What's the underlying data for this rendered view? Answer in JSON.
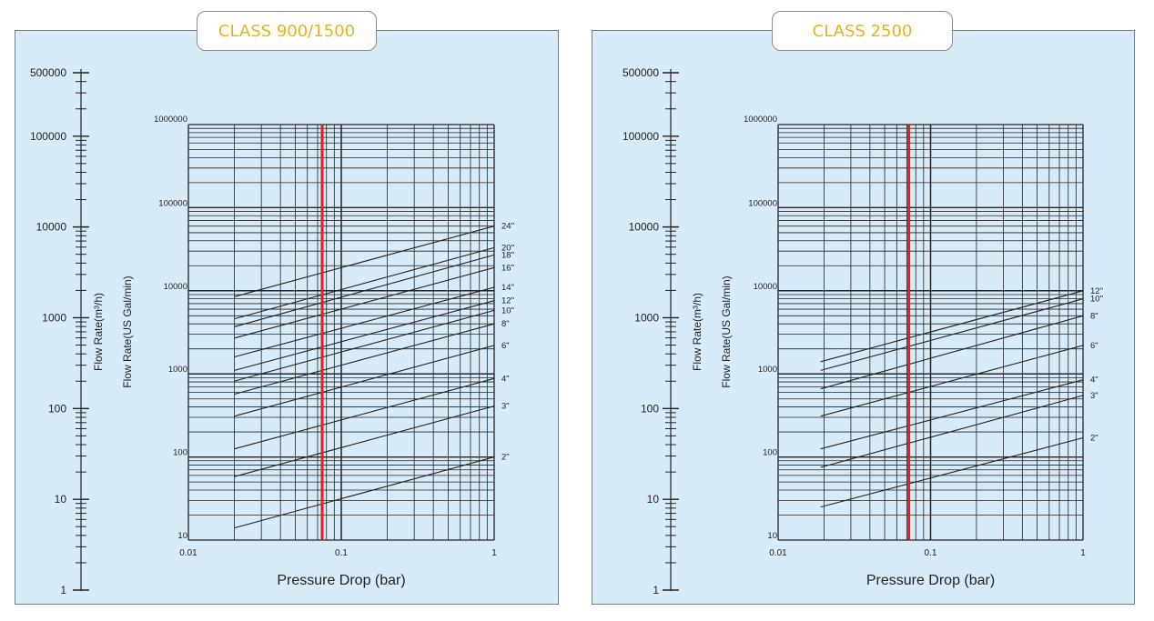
{
  "chart_data": [
    {
      "type": "line",
      "title": "CLASS 900/1500",
      "xlabel": "Pressure Drop (bar)",
      "xscale": "log",
      "yscale": "log",
      "xlim": [
        0.01,
        1
      ],
      "ylim": [
        10,
        1000000
      ],
      "x_ticks": [
        "0.01",
        "0.1",
        "1"
      ],
      "y_ticks": [
        "10",
        "100",
        "1000",
        "10000",
        "100000",
        "1000000"
      ],
      "ylabel_left": "Flow Rate(m³/h)",
      "ylabel_right": "Flow Rate(US Gal/min)",
      "secondary_axis_ticks": [
        "1",
        "10",
        "100",
        "1000",
        "10000",
        "100000",
        "500000"
      ],
      "secondary_axis_lim": [
        1,
        500000
      ],
      "grid": true,
      "reference_line": {
        "x": 0.075,
        "color": "#e02020"
      },
      "series": [
        {
          "name": "24\"",
          "x": [
            0.02,
            1
          ],
          "y": [
            8500,
            60000
          ]
        },
        {
          "name": "20\"",
          "x": [
            0.02,
            1
          ],
          "y": [
            4600,
            33000
          ]
        },
        {
          "name": "18\"",
          "x": [
            0.02,
            1
          ],
          "y": [
            3700,
            27000
          ]
        },
        {
          "name": "16\"",
          "x": [
            0.02,
            1
          ],
          "y": [
            2700,
            19000
          ]
        },
        {
          "name": "14\"",
          "x": [
            0.02,
            1
          ],
          "y": [
            1600,
            11000
          ]
        },
        {
          "name": "12\"",
          "x": [
            0.02,
            1
          ],
          "y": [
            1100,
            7600
          ]
        },
        {
          "name": "10\"",
          "x": [
            0.02,
            1
          ],
          "y": [
            820,
            5800
          ]
        },
        {
          "name": "8\"",
          "x": [
            0.02,
            1
          ],
          "y": [
            570,
            4000
          ]
        },
        {
          "name": "6\"",
          "x": [
            0.02,
            1
          ],
          "y": [
            310,
            2200
          ]
        },
        {
          "name": "4\"",
          "x": [
            0.02,
            1
          ],
          "y": [
            125,
            880
          ]
        },
        {
          "name": "3\"",
          "x": [
            0.02,
            1
          ],
          "y": [
            58,
            410
          ]
        },
        {
          "name": "2\"",
          "x": [
            0.02,
            1
          ],
          "y": [
            14,
            100
          ]
        }
      ]
    },
    {
      "type": "line",
      "title": "CLASS 2500",
      "xlabel": "Pressure Drop (bar)",
      "xscale": "log",
      "yscale": "log",
      "xlim": [
        0.01,
        1
      ],
      "ylim": [
        10,
        1000000
      ],
      "x_ticks": [
        "0.01",
        "0.1",
        "1"
      ],
      "y_ticks": [
        "10",
        "100",
        "1000",
        "10000",
        "100000",
        "1000000"
      ],
      "ylabel_left": "Flow Rate(m³/h)",
      "ylabel_right": "Flow Rate(US Gal/min)",
      "secondary_axis_ticks": [
        "1",
        "10",
        "100",
        "1000",
        "10000",
        "100000",
        "500000"
      ],
      "secondary_axis_lim": [
        1,
        500000
      ],
      "grid": true,
      "reference_line": {
        "x": 0.072,
        "color": "#e02020"
      },
      "series": [
        {
          "name": "12\"",
          "x": [
            0.019,
            1
          ],
          "y": [
            1400,
            10000
          ]
        },
        {
          "name": "10\"",
          "x": [
            0.019,
            1
          ],
          "y": [
            1100,
            8000
          ]
        },
        {
          "name": "8\"",
          "x": [
            0.019,
            1
          ],
          "y": [
            660,
            5000
          ]
        },
        {
          "name": "6\"",
          "x": [
            0.019,
            1
          ],
          "y": [
            310,
            2200
          ]
        },
        {
          "name": "4\"",
          "x": [
            0.019,
            1
          ],
          "y": [
            125,
            850
          ]
        },
        {
          "name": "3\"",
          "x": [
            0.019,
            1
          ],
          "y": [
            75,
            550
          ]
        },
        {
          "name": "2\"",
          "x": [
            0.019,
            1
          ],
          "y": [
            25,
            170
          ]
        }
      ]
    }
  ]
}
